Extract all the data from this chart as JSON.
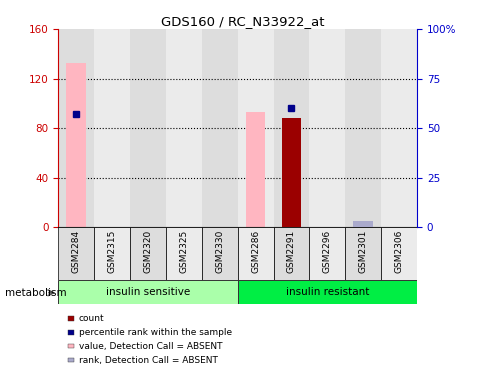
{
  "title": "GDS160 / RC_N33922_at",
  "samples": [
    "GSM2284",
    "GSM2315",
    "GSM2320",
    "GSM2325",
    "GSM2330",
    "GSM2286",
    "GSM2291",
    "GSM2296",
    "GSM2301",
    "GSM2306"
  ],
  "group1_label": "insulin sensitive",
  "group2_label": "insulin resistant",
  "group1_count": 5,
  "group2_count": 5,
  "factor_label": "metabolism",
  "count_values": [
    0,
    0,
    0,
    0,
    0,
    0,
    88,
    0,
    0,
    0
  ],
  "percentile_rank": [
    57,
    0,
    0,
    0,
    0,
    0,
    60,
    0,
    0,
    0
  ],
  "value_absent": [
    133,
    0,
    0,
    0,
    0,
    93,
    0,
    0,
    0,
    0
  ],
  "rank_absent": [
    0,
    0,
    0,
    0,
    0,
    0,
    0,
    0,
    3,
    0
  ],
  "ylim_left": [
    0,
    160
  ],
  "ylim_right": [
    0,
    100
  ],
  "yticks_left": [
    0,
    40,
    80,
    120,
    160
  ],
  "yticks_right": [
    0,
    25,
    50,
    75,
    100
  ],
  "ytick_labels_right": [
    "0",
    "25",
    "50",
    "75",
    "100%"
  ],
  "color_count": "#9B0000",
  "color_percentile": "#00008B",
  "color_value_absent": "#FFB6C1",
  "color_rank_absent": "#AAAACC",
  "color_group1": "#AAFFAA",
  "color_group2": "#00EE44",
  "color_axis_left": "#CC0000",
  "color_axis_right": "#0000CC",
  "cell_color_odd": "#DDDDDD",
  "cell_color_even": "#EBEBEB",
  "legend_items": [
    {
      "label": "count",
      "color": "#9B0000"
    },
    {
      "label": "percentile rank within the sample",
      "color": "#00008B"
    },
    {
      "label": "value, Detection Call = ABSENT",
      "color": "#FFB6C1"
    },
    {
      "label": "rank, Detection Call = ABSENT",
      "color": "#AAAACC"
    }
  ]
}
